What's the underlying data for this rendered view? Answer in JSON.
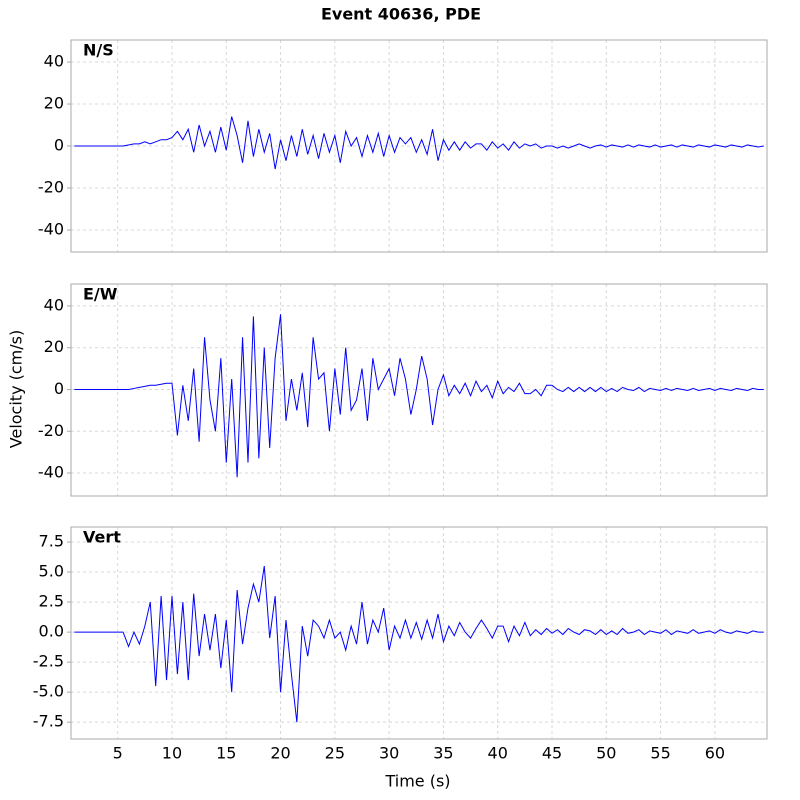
{
  "chart_data": [
    {
      "type": "line",
      "title": "Event 40636, PDE",
      "annotation": "N/S",
      "color": "#0000ff",
      "grid": true,
      "xlim": [
        0.7,
        64.8
      ],
      "xticks": [
        5,
        10,
        15,
        20,
        25,
        30,
        35,
        40,
        45,
        50,
        55,
        60
      ],
      "ylim": [
        -50.5,
        50.5
      ],
      "yticks": [
        -40,
        -20,
        0,
        20,
        40
      ],
      "x": [
        1,
        1.5,
        2,
        2.5,
        3,
        3.5,
        4,
        4.5,
        5,
        5.5,
        6,
        6.5,
        7,
        7.5,
        8,
        8.5,
        9,
        9.5,
        10,
        10.5,
        11,
        11.5,
        12,
        12.5,
        13,
        13.5,
        14,
        14.5,
        15,
        15.5,
        16,
        16.5,
        17,
        17.5,
        18,
        18.5,
        19,
        19.5,
        20,
        20.5,
        21,
        21.5,
        22,
        22.5,
        23,
        23.5,
        24,
        24.5,
        25,
        25.5,
        26,
        26.5,
        27,
        27.5,
        28,
        28.5,
        29,
        29.5,
        30,
        30.5,
        31,
        31.5,
        32,
        32.5,
        33,
        33.5,
        34,
        34.5,
        35,
        35.5,
        36,
        36.5,
        37,
        37.5,
        38,
        38.5,
        39,
        39.5,
        40,
        40.5,
        41,
        41.5,
        42,
        42.5,
        43,
        43.5,
        44,
        44.5,
        45,
        45.5,
        46,
        46.5,
        47,
        47.5,
        48,
        48.5,
        49,
        49.5,
        50,
        50.5,
        51,
        51.5,
        52,
        52.5,
        53,
        53.5,
        54,
        54.5,
        55,
        55.5,
        56,
        56.5,
        57,
        57.5,
        58,
        58.5,
        59,
        59.5,
        60,
        60.5,
        61,
        61.5,
        62,
        62.5,
        63,
        63.5,
        64,
        64.5
      ],
      "values": [
        0,
        0,
        0,
        0,
        0,
        0,
        0,
        0,
        0,
        0,
        0.5,
        1,
        1,
        2,
        1,
        2,
        3,
        3,
        4,
        7,
        3,
        8,
        -3,
        10,
        0,
        7,
        -3,
        9,
        -2,
        14,
        5,
        -8,
        12,
        -5,
        8,
        -3,
        6,
        -11,
        3,
        -7,
        5,
        -5,
        8,
        -4,
        5,
        -6,
        6,
        -3,
        5,
        -8,
        7,
        0,
        4,
        -5,
        5,
        -3,
        6,
        -5,
        5,
        -3,
        4,
        1,
        4,
        -3,
        3,
        -4,
        8,
        -7,
        3,
        -2,
        2,
        -2,
        2,
        -1,
        1,
        1,
        -2,
        2,
        -1,
        1,
        -2,
        2,
        -1,
        1,
        0,
        1,
        -1,
        0,
        0,
        -1,
        0,
        -1,
        0,
        1,
        0,
        -1,
        0,
        0.5,
        -0.5,
        0.5,
        0,
        -0.5,
        0.5,
        -0.5,
        0.5,
        0,
        -0.5,
        0.5,
        -0.5,
        0,
        0.5,
        -0.5,
        0.5,
        0,
        -0.5,
        0.5,
        0,
        -0.5,
        0.5,
        0,
        -0.5,
        0.5,
        0,
        -0.5,
        0.5,
        0,
        -0.5,
        0
      ]
    },
    {
      "type": "line",
      "ylabel": "Velocity (cm/s)",
      "annotation": "E/W",
      "color": "#0000ff",
      "grid": true,
      "xlim": [
        0.7,
        64.8
      ],
      "xticks": [
        5,
        10,
        15,
        20,
        25,
        30,
        35,
        40,
        45,
        50,
        55,
        60
      ],
      "ylim": [
        -51,
        50.5
      ],
      "yticks": [
        -40,
        -20,
        0,
        20,
        40
      ],
      "x": [
        1,
        1.5,
        2,
        2.5,
        3,
        3.5,
        4,
        4.5,
        5,
        5.5,
        6,
        6.5,
        7,
        7.5,
        8,
        8.5,
        9,
        9.5,
        10,
        10.5,
        11,
        11.5,
        12,
        12.5,
        13,
        13.5,
        14,
        14.5,
        15,
        15.5,
        16,
        16.5,
        17,
        17.5,
        18,
        18.5,
        19,
        19.5,
        20,
        20.5,
        21,
        21.5,
        22,
        22.5,
        23,
        23.5,
        24,
        24.5,
        25,
        25.5,
        26,
        26.5,
        27,
        27.5,
        28,
        28.5,
        29,
        29.5,
        30,
        30.5,
        31,
        31.5,
        32,
        32.5,
        33,
        33.5,
        34,
        34.5,
        35,
        35.5,
        36,
        36.5,
        37,
        37.5,
        38,
        38.5,
        39,
        39.5,
        40,
        40.5,
        41,
        41.5,
        42,
        42.5,
        43,
        43.5,
        44,
        44.5,
        45,
        45.5,
        46,
        46.5,
        47,
        47.5,
        48,
        48.5,
        49,
        49.5,
        50,
        50.5,
        51,
        51.5,
        52,
        52.5,
        53,
        53.5,
        54,
        54.5,
        55,
        55.5,
        56,
        56.5,
        57,
        57.5,
        58,
        58.5,
        59,
        59.5,
        60,
        60.5,
        61,
        61.5,
        62,
        62.5,
        63,
        63.5,
        64,
        64.5
      ],
      "values": [
        0,
        0,
        0,
        0,
        0,
        0,
        0,
        0,
        0,
        0,
        0,
        0.5,
        1,
        1.5,
        2,
        2,
        2.5,
        3,
        3,
        -22,
        2,
        -15,
        10,
        -25,
        25,
        -5,
        -20,
        15,
        -35,
        5,
        -42,
        25,
        -35,
        35,
        -33,
        20,
        -28,
        15,
        36,
        -15,
        5,
        -10,
        8,
        -18,
        25,
        5,
        8,
        -20,
        10,
        -12,
        20,
        -10,
        -5,
        10,
        -15,
        15,
        0,
        5,
        10,
        -3,
        15,
        5,
        -12,
        0,
        16,
        5,
        -17,
        0,
        7,
        -3,
        2,
        -2,
        3,
        -3,
        4,
        -1,
        2,
        -4,
        4,
        -2,
        1,
        -1,
        3,
        -2,
        -2,
        0,
        -3,
        2,
        2,
        0,
        -1,
        1,
        -1,
        1,
        -1,
        1,
        -1,
        1,
        -1,
        0.5,
        -1,
        1,
        0,
        -0.5,
        1,
        -1,
        0.5,
        0,
        -0.5,
        0.5,
        -0.5,
        0.5,
        0,
        -0.5,
        0.5,
        -0.5,
        0,
        0.5,
        -0.5,
        0.5,
        0,
        -0.5,
        0.5,
        0,
        -0.5,
        0.5,
        0,
        0
      ]
    },
    {
      "type": "line",
      "xlabel": "Time (s)",
      "annotation": "Vert",
      "color": "#0000ff",
      "grid": true,
      "xlim": [
        0.7,
        64.8
      ],
      "xticks": [
        5,
        10,
        15,
        20,
        25,
        30,
        35,
        40,
        45,
        50,
        55,
        60
      ],
      "ylim": [
        -8.9,
        8.75
      ],
      "yticks": [
        -7.5,
        {
          "value": -5,
          "label": "-5.0"
        },
        -2.5,
        {
          "value": 0,
          "label": "0.0"
        },
        2.5,
        {
          "value": 5,
          "label": "5.0"
        },
        7.5
      ],
      "x": [
        1,
        1.5,
        2,
        2.5,
        3,
        3.5,
        4,
        4.5,
        5,
        5.5,
        6,
        6.5,
        7,
        7.5,
        8,
        8.5,
        9,
        9.5,
        10,
        10.5,
        11,
        11.5,
        12,
        12.5,
        13,
        13.5,
        14,
        14.5,
        15,
        15.5,
        16,
        16.5,
        17,
        17.5,
        18,
        18.5,
        19,
        19.5,
        20,
        20.5,
        21,
        21.5,
        22,
        22.5,
        23,
        23.5,
        24,
        24.5,
        25,
        25.5,
        26,
        26.5,
        27,
        27.5,
        28,
        28.5,
        29,
        29.5,
        30,
        30.5,
        31,
        31.5,
        32,
        32.5,
        33,
        33.5,
        34,
        34.5,
        35,
        35.5,
        36,
        36.5,
        37,
        37.5,
        38,
        38.5,
        39,
        39.5,
        40,
        40.5,
        41,
        41.5,
        42,
        42.5,
        43,
        43.5,
        44,
        44.5,
        45,
        45.5,
        46,
        46.5,
        47,
        47.5,
        48,
        48.5,
        49,
        49.5,
        50,
        50.5,
        51,
        51.5,
        52,
        52.5,
        53,
        53.5,
        54,
        54.5,
        55,
        55.5,
        56,
        56.5,
        57,
        57.5,
        58,
        58.5,
        59,
        59.5,
        60,
        60.5,
        61,
        61.5,
        62,
        62.5,
        63,
        63.5,
        64,
        64.5
      ],
      "values": [
        0,
        0,
        0,
        0,
        0,
        0,
        0,
        0,
        0,
        0,
        -1.2,
        0,
        -1,
        0.5,
        2.5,
        -4.5,
        3,
        -4,
        3,
        -3.5,
        2.5,
        -4,
        3.2,
        -2,
        1.5,
        -1.5,
        1.5,
        -3,
        1,
        -5,
        3.5,
        -1,
        2,
        4,
        2.5,
        5.5,
        -0.5,
        3,
        -5,
        1,
        -3.5,
        -7.5,
        0.5,
        -2,
        1,
        0.5,
        -0.5,
        1,
        -0.5,
        0,
        -1.5,
        0.5,
        -1,
        2.5,
        -1,
        1,
        0,
        2,
        -1.5,
        0.5,
        -0.5,
        1,
        -0.5,
        0.8,
        -0.6,
        1,
        -0.5,
        1.5,
        -0.8,
        0.5,
        -0.3,
        0.8,
        0,
        -0.5,
        0.3,
        1,
        0.3,
        -0.5,
        0.5,
        0.5,
        -0.8,
        0.5,
        -0.3,
        0.8,
        -0.3,
        0.2,
        -0.2,
        0.3,
        -0.1,
        0.2,
        -0.2,
        0.3,
        0,
        -0.2,
        0.2,
        0.1,
        -0.2,
        0.2,
        -0.2,
        0.1,
        -0.2,
        0.3,
        -0.1,
        0,
        0.2,
        -0.2,
        0.1,
        0,
        -0.1,
        0.2,
        -0.2,
        0.1,
        0,
        -0.1,
        0.2,
        -0.1,
        0,
        0.1,
        -0.1,
        0.2,
        0,
        -0.1,
        0.1,
        0,
        -0.1,
        0.1,
        0,
        0
      ]
    }
  ]
}
